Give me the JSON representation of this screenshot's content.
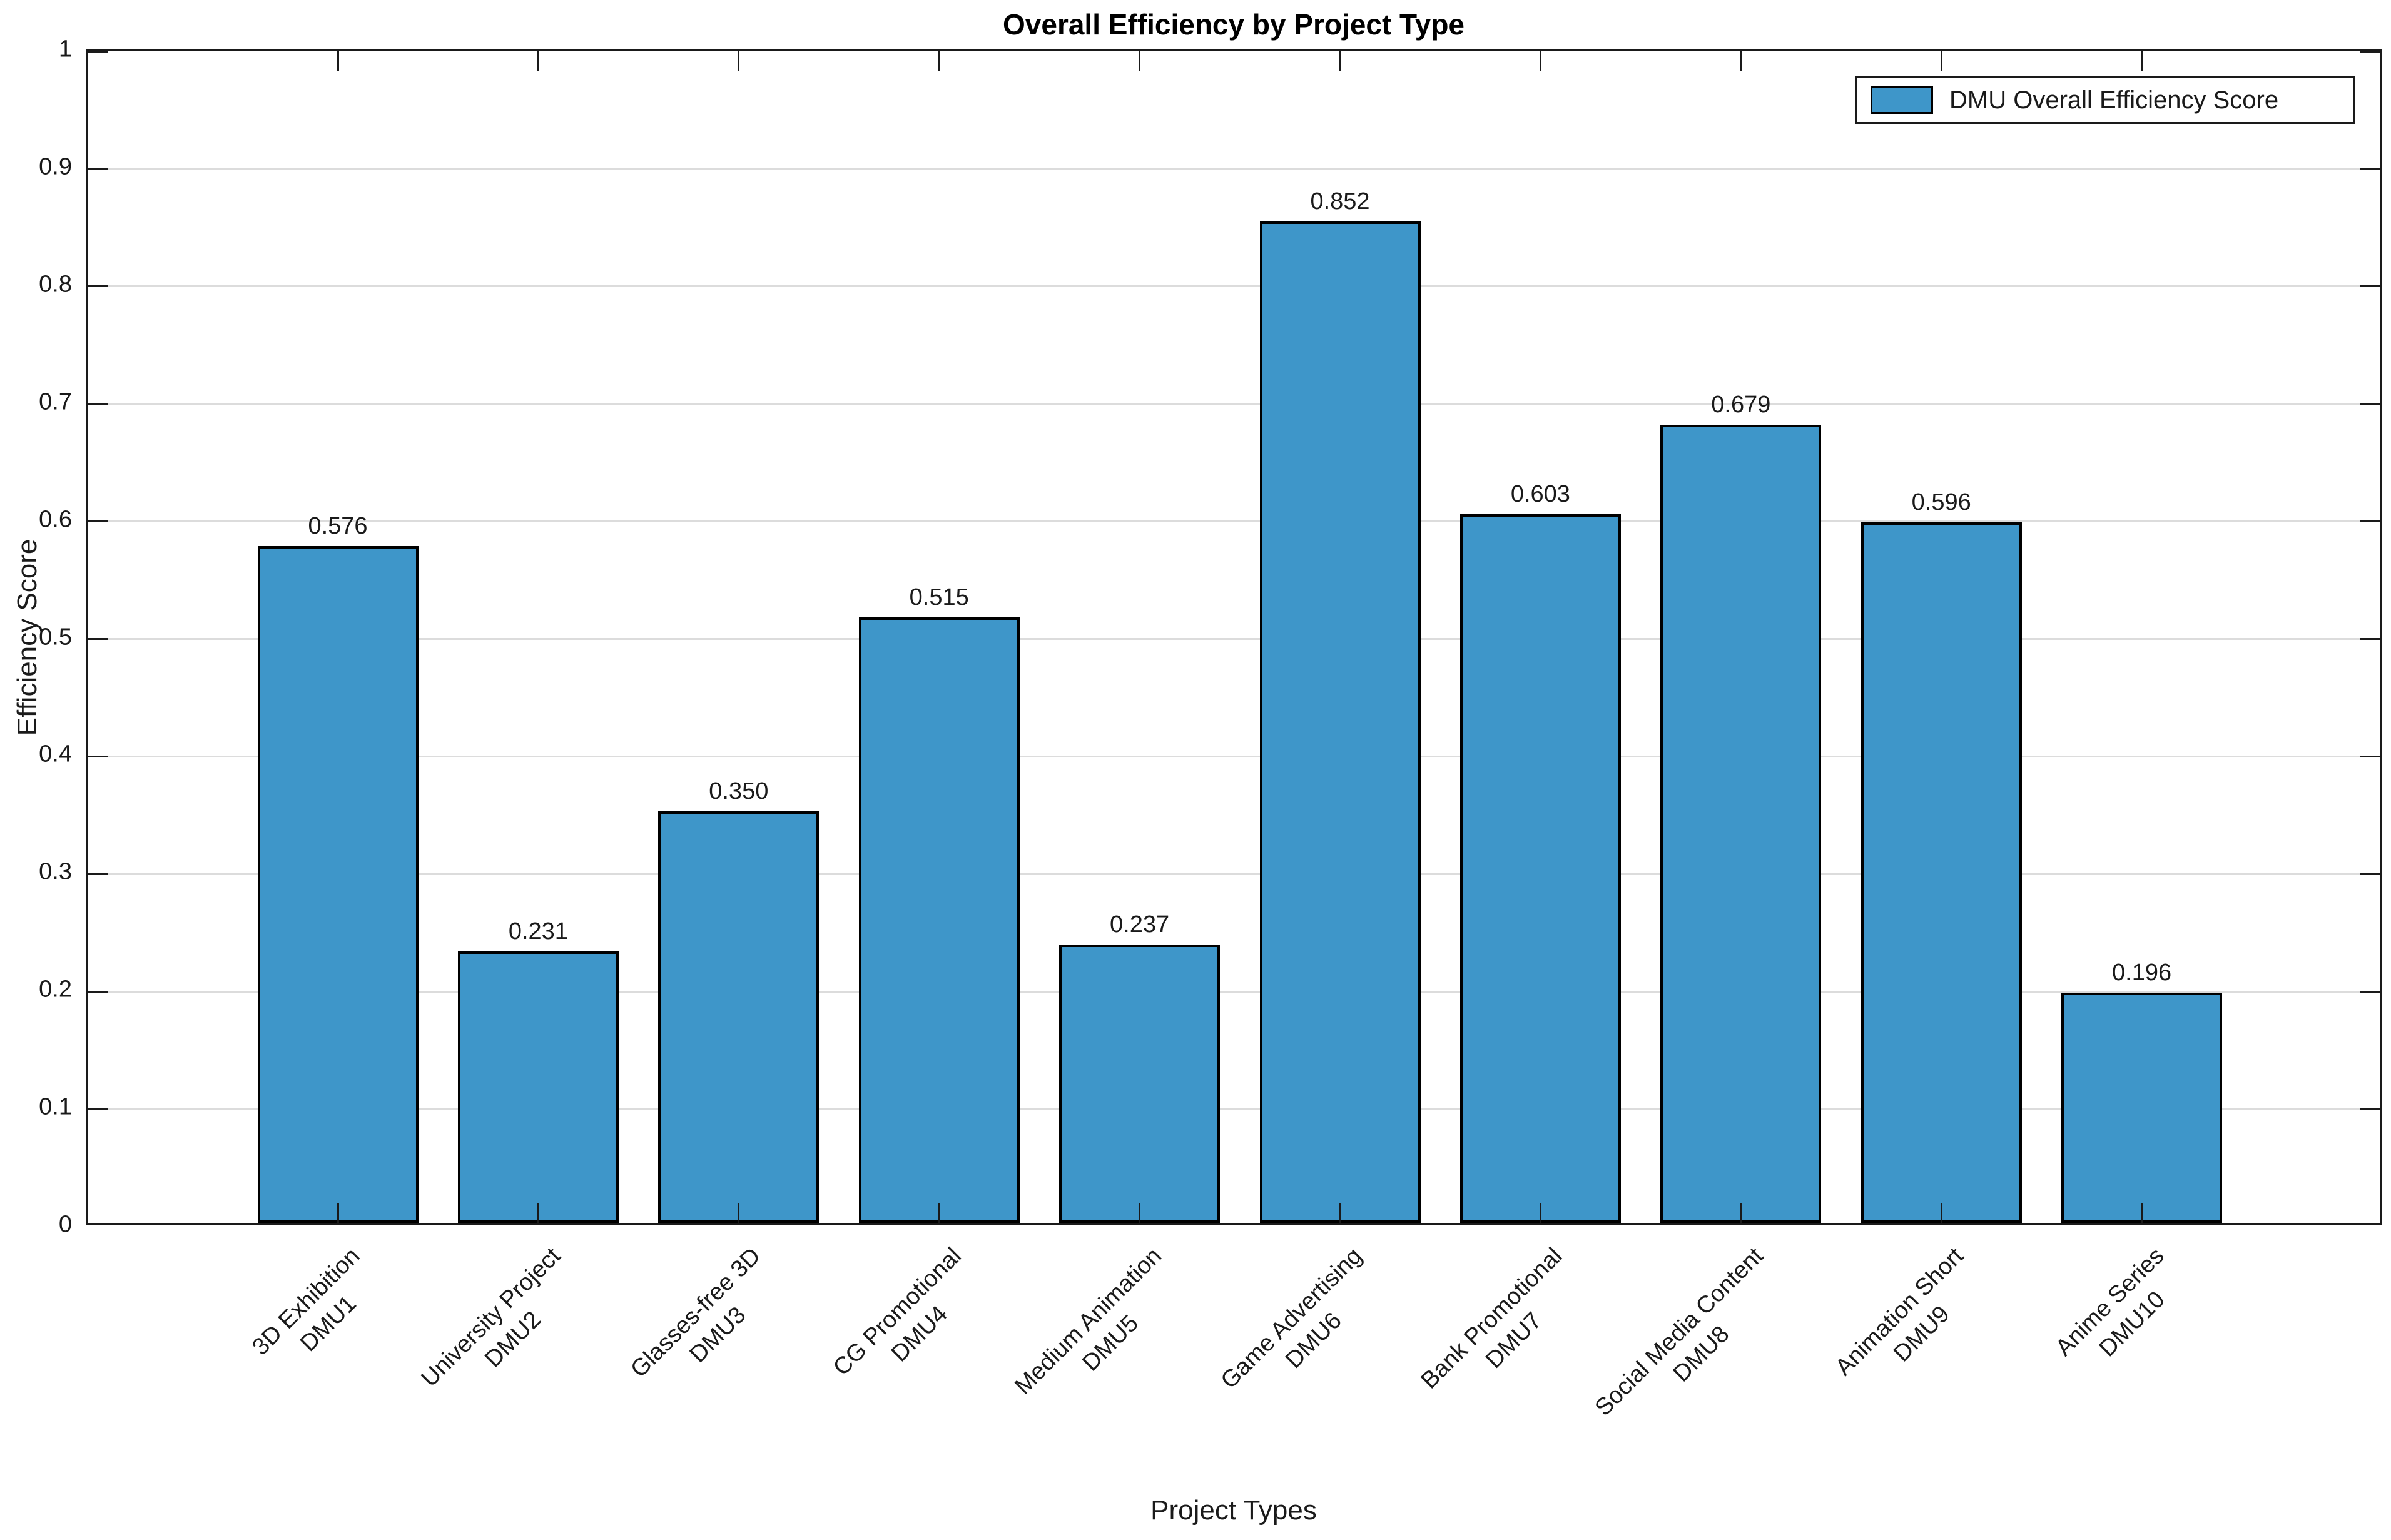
{
  "chart_data": {
    "type": "bar",
    "title": "Overall Efficiency by Project Type",
    "xlabel": "Project Types",
    "ylabel": "Efficiency Score",
    "legend": [
      "DMU Overall Efficiency Score"
    ],
    "legend_position": "top-right",
    "grid": "horizontal",
    "ylim": [
      0,
      1
    ],
    "yticks": [
      "0",
      "0.1",
      "0.2",
      "0.3",
      "0.4",
      "0.5",
      "0.6",
      "0.7",
      "0.8",
      "0.9",
      "1"
    ],
    "categories": [
      {
        "name": "3D Exhibition",
        "dmu": "DMU1"
      },
      {
        "name": "University Project",
        "dmu": "DMU2"
      },
      {
        "name": "Glasses-free 3D",
        "dmu": "DMU3"
      },
      {
        "name": "CG Promotional",
        "dmu": "DMU4"
      },
      {
        "name": "Medium Animation",
        "dmu": "DMU5"
      },
      {
        "name": "Game Advertising",
        "dmu": "DMU6"
      },
      {
        "name": "Bank Promotional",
        "dmu": "DMU7"
      },
      {
        "name": "Social Media Content",
        "dmu": "DMU8"
      },
      {
        "name": "Animation Short",
        "dmu": "DMU9"
      },
      {
        "name": "Anime Series",
        "dmu": "DMU10"
      }
    ],
    "values": [
      0.576,
      0.231,
      0.35,
      0.515,
      0.237,
      0.852,
      0.603,
      0.679,
      0.596,
      0.196
    ],
    "value_labels": [
      "0.576",
      "0.231",
      "0.350",
      "0.515",
      "0.237",
      "0.852",
      "0.603",
      "0.679",
      "0.596",
      "0.196"
    ],
    "colors": {
      "bar_fill": "#3E96C9",
      "bar_edge": "#000000",
      "axis": "#1a1a1a",
      "grid": "#dcdcdc",
      "background": "#ffffff"
    }
  }
}
